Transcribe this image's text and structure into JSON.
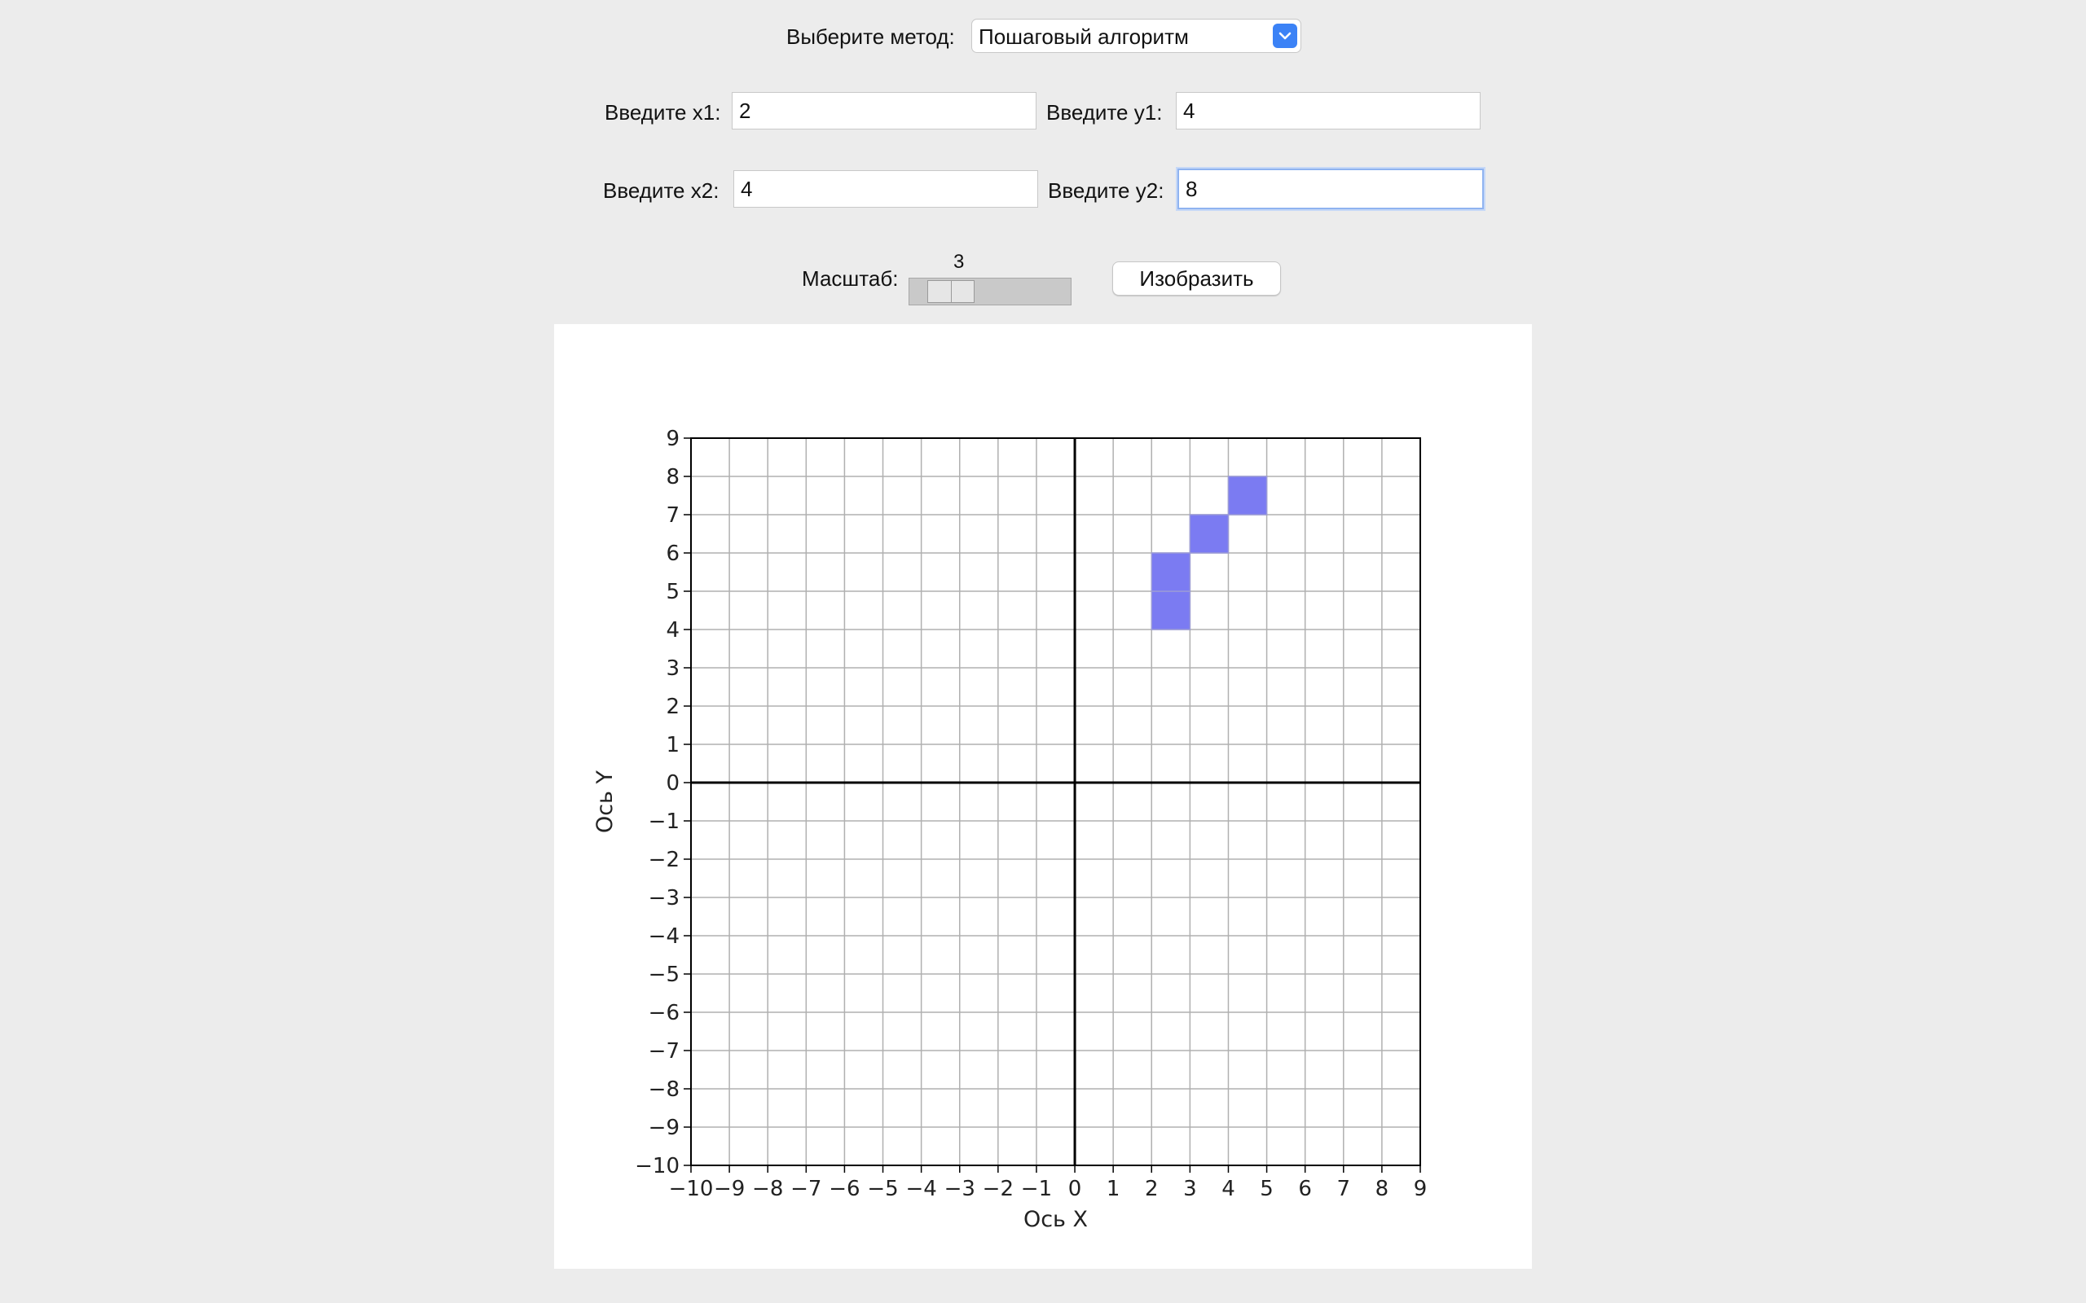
{
  "method": {
    "label": "Выберите метод:",
    "selected": "Пошаговый алгоритм"
  },
  "inputs": {
    "x1": {
      "label": "Введите x1:",
      "value": "2"
    },
    "y1": {
      "label": "Введите y1:",
      "value": "4"
    },
    "x2": {
      "label": "Введите x2:",
      "value": "4"
    },
    "y2": {
      "label": "Введите y2:",
      "value": "8"
    }
  },
  "scale": {
    "label": "Масштаб:",
    "value": "3",
    "min": 1,
    "max": 10
  },
  "draw_button": "Изобразить",
  "colors": {
    "pixel_fill": "#7b7bf2",
    "pixel_edge": "#9a9ad8",
    "grid": "#b0b0b0",
    "axis": "#000000"
  },
  "chart_data": {
    "type": "heatmap",
    "xlabel": "Ось X",
    "ylabel": "Ось Y",
    "xlim": [
      -10,
      9
    ],
    "ylim": [
      -10,
      9
    ],
    "grid": true,
    "cells": [
      {
        "x": 2,
        "y": 4
      },
      {
        "x": 2,
        "y": 5
      },
      {
        "x": 3,
        "y": 6
      },
      {
        "x": 4,
        "y": 7
      }
    ]
  }
}
